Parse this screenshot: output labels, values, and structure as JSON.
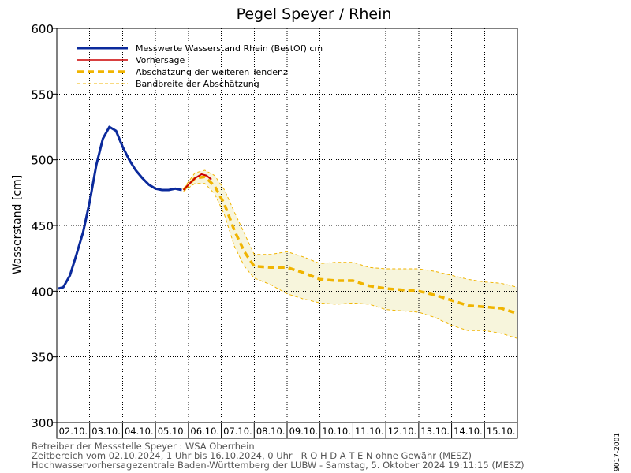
{
  "footer": {
    "line1": "Betreiber der Messstelle Speyer : WSA Oberrhein",
    "line2": "Zeitbereich vom 02.10.2024, 1 Uhr bis 16.10.2024, 0 Uhr   R O H D A T E N ohne Gewähr (MESZ)",
    "line3": "Hochwasservorhersagezentrale Baden-Württemberg der LUBW - Samstag, 5. Oktober 2024 19:11:15 (MESZ)"
  },
  "code_label": "9017-2001",
  "colors": {
    "measured": "#0b2a9c",
    "forecast": "#cc0000",
    "estimate": "#f0b400",
    "band_fill": "#f7f5dc"
  },
  "chart_data": {
    "type": "line",
    "title": "Pegel Speyer / Rhein",
    "ylabel": "Wasserstand [cm]",
    "xlabel": "",
    "ylim": [
      300,
      600
    ],
    "yticks": [
      300,
      350,
      400,
      450,
      500,
      550,
      600
    ],
    "xlim_days": [
      0,
      14
    ],
    "x_unit": "days after 02.10.2024 00:00",
    "xtick_labels": [
      "02.10.",
      "03.10.",
      "04.10.",
      "05.10.",
      "06.10.",
      "07.10.",
      "08.10.",
      "09.10.",
      "10.10.",
      "11.10.",
      "12.10.",
      "13.10.",
      "14.10.",
      "15.10."
    ],
    "grid": true,
    "legend_position": "top-left",
    "series": [
      {
        "name": "Messwerte Wasserstand Rhein (BestOf)  cm",
        "style": "solid-thick",
        "x": [
          0.05,
          0.2,
          0.4,
          0.6,
          0.8,
          1.0,
          1.2,
          1.4,
          1.6,
          1.8,
          2.0,
          2.2,
          2.4,
          2.6,
          2.8,
          3.0,
          3.2,
          3.4,
          3.6,
          3.8
        ],
        "values": [
          402,
          403,
          412,
          428,
          445,
          468,
          496,
          516,
          525,
          522,
          510,
          500,
          492,
          486,
          481,
          478,
          477,
          477,
          478,
          477
        ]
      },
      {
        "name": "Vorhersage",
        "style": "solid-thin",
        "x": [
          3.85,
          4.0,
          4.2,
          4.4,
          4.55,
          4.7
        ],
        "values": [
          477,
          481,
          486,
          489,
          488,
          485
        ]
      },
      {
        "name": "Abschätzung der weiteren Tendenz",
        "style": "dashed-thick",
        "x": [
          3.85,
          4.2,
          4.5,
          4.8,
          5.1,
          5.4,
          5.7,
          6.0,
          6.5,
          7.0,
          7.5,
          8.0,
          8.5,
          9.0,
          9.5,
          10.0,
          10.5,
          11.0,
          11.5,
          12.0,
          12.5,
          13.0,
          13.5,
          14.0
        ],
        "values": [
          477,
          486,
          487,
          480,
          466,
          446,
          430,
          419,
          418,
          418,
          414,
          409,
          408,
          408,
          404,
          402,
          401,
          400,
          397,
          393,
          389,
          388,
          387,
          383
        ]
      },
      {
        "name": "Bandbreite der Abschätzung",
        "style": "dashed-thin",
        "x": [
          3.85,
          4.2,
          4.5,
          4.8,
          5.1,
          5.4,
          5.7,
          6.0,
          6.5,
          7.0,
          7.5,
          8.0,
          8.5,
          9.0,
          9.5,
          10.0,
          10.5,
          11.0,
          11.5,
          12.0,
          12.5,
          13.0,
          13.5,
          14.0
        ],
        "upper": [
          478,
          490,
          492,
          488,
          477,
          460,
          444,
          428,
          428,
          430,
          426,
          421,
          422,
          422,
          418,
          417,
          417,
          417,
          415,
          412,
          409,
          407,
          406,
          403
        ],
        "lower": [
          476,
          482,
          482,
          474,
          458,
          434,
          419,
          410,
          405,
          398,
          394,
          391,
          390,
          391,
          390,
          386,
          385,
          384,
          380,
          374,
          370,
          370,
          368,
          364
        ]
      }
    ]
  }
}
